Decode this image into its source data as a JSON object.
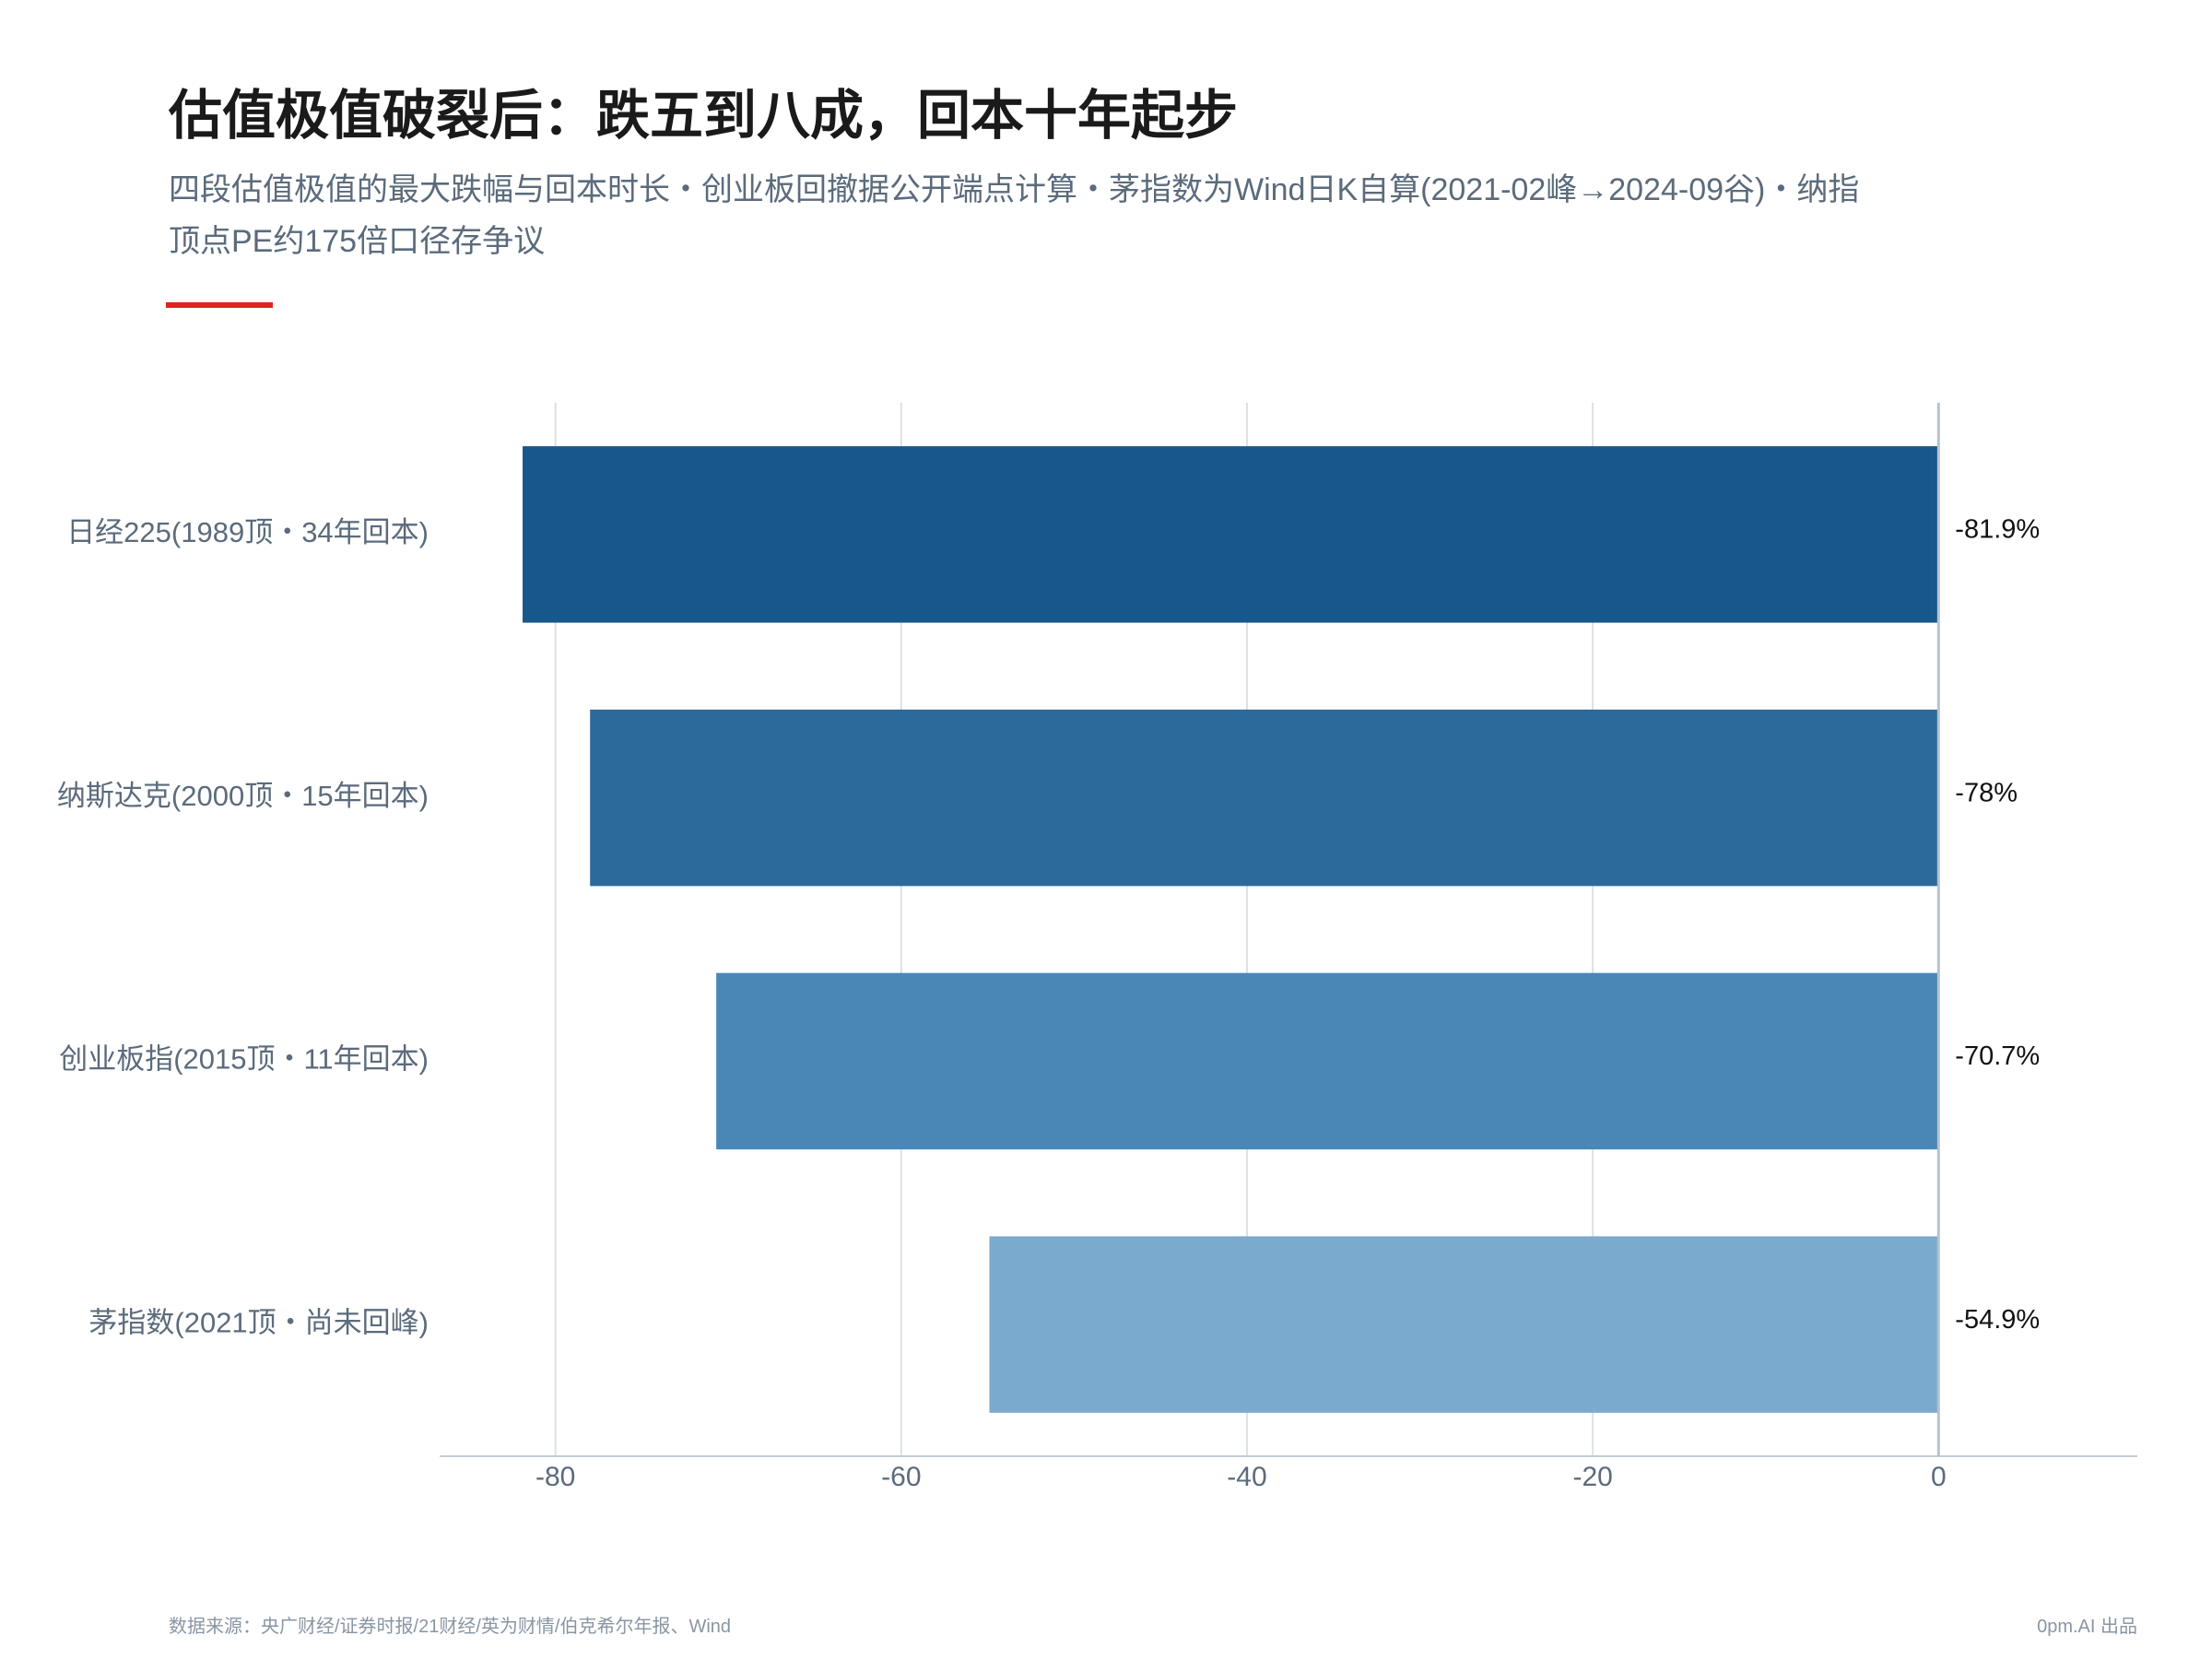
{
  "chart_data": {
    "type": "barh",
    "title": "估值极值破裂后：跌五到八成，回本十年起步",
    "subtitle": "四段估值极值的最大跌幅与回本时长・创业板回撤据公开端点计算・茅指数为Wind日K自算(2021-02峰→2024-09谷)・纳指顶点PE约175倍口径存争议",
    "categories": [
      "日经225(1989顶・34年回本)",
      "纳斯达克(2000顶・15年回本)",
      "创业板指(2015顶・11年回本)",
      "茅指数(2021顶・尚未回峰)"
    ],
    "values": [
      -81.9,
      -78,
      -70.7,
      -54.9
    ],
    "value_labels": [
      "-81.9%",
      "-78%",
      "-70.7%",
      "-54.9%"
    ],
    "colors": [
      "#17578b",
      "#2c6a9c",
      "#4a87b6",
      "#7aaacd"
    ],
    "xlim": [
      -86.7,
      11.5
    ],
    "xticks": [
      -80,
      -60,
      -40,
      -20,
      0
    ],
    "grid": true,
    "source": "数据来源：央广财经/证券时报/21财经/英为财情/伯克希尔年报、Wind",
    "credit": "0pm.AI 出品"
  }
}
